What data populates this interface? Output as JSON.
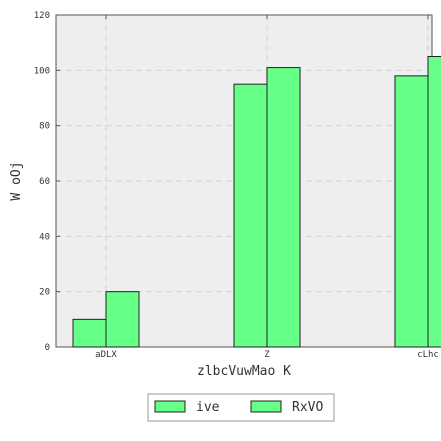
{
  "chart_data": {
    "type": "bar",
    "categories": [
      "aDLX",
      "Z",
      "cLhc"
    ],
    "series": [
      {
        "name": "ive",
        "values": [
          10,
          95,
          98
        ]
      },
      {
        "name": "RxVO",
        "values": [
          20,
          101,
          105
        ]
      }
    ],
    "xlabel": "zlbcVuwMao  K",
    "ylabel": "W  oOj",
    "ylim": [
      0,
      120
    ],
    "yticks": [
      0,
      20,
      40,
      60,
      80,
      100,
      120
    ],
    "grid": true,
    "legend_position": "bottom-center",
    "colors": {
      "bar_fill": "#66ff88",
      "bar_stroke": "#222222",
      "plot_bg": "#eeeeee",
      "grid": "#d4d4d4"
    }
  }
}
